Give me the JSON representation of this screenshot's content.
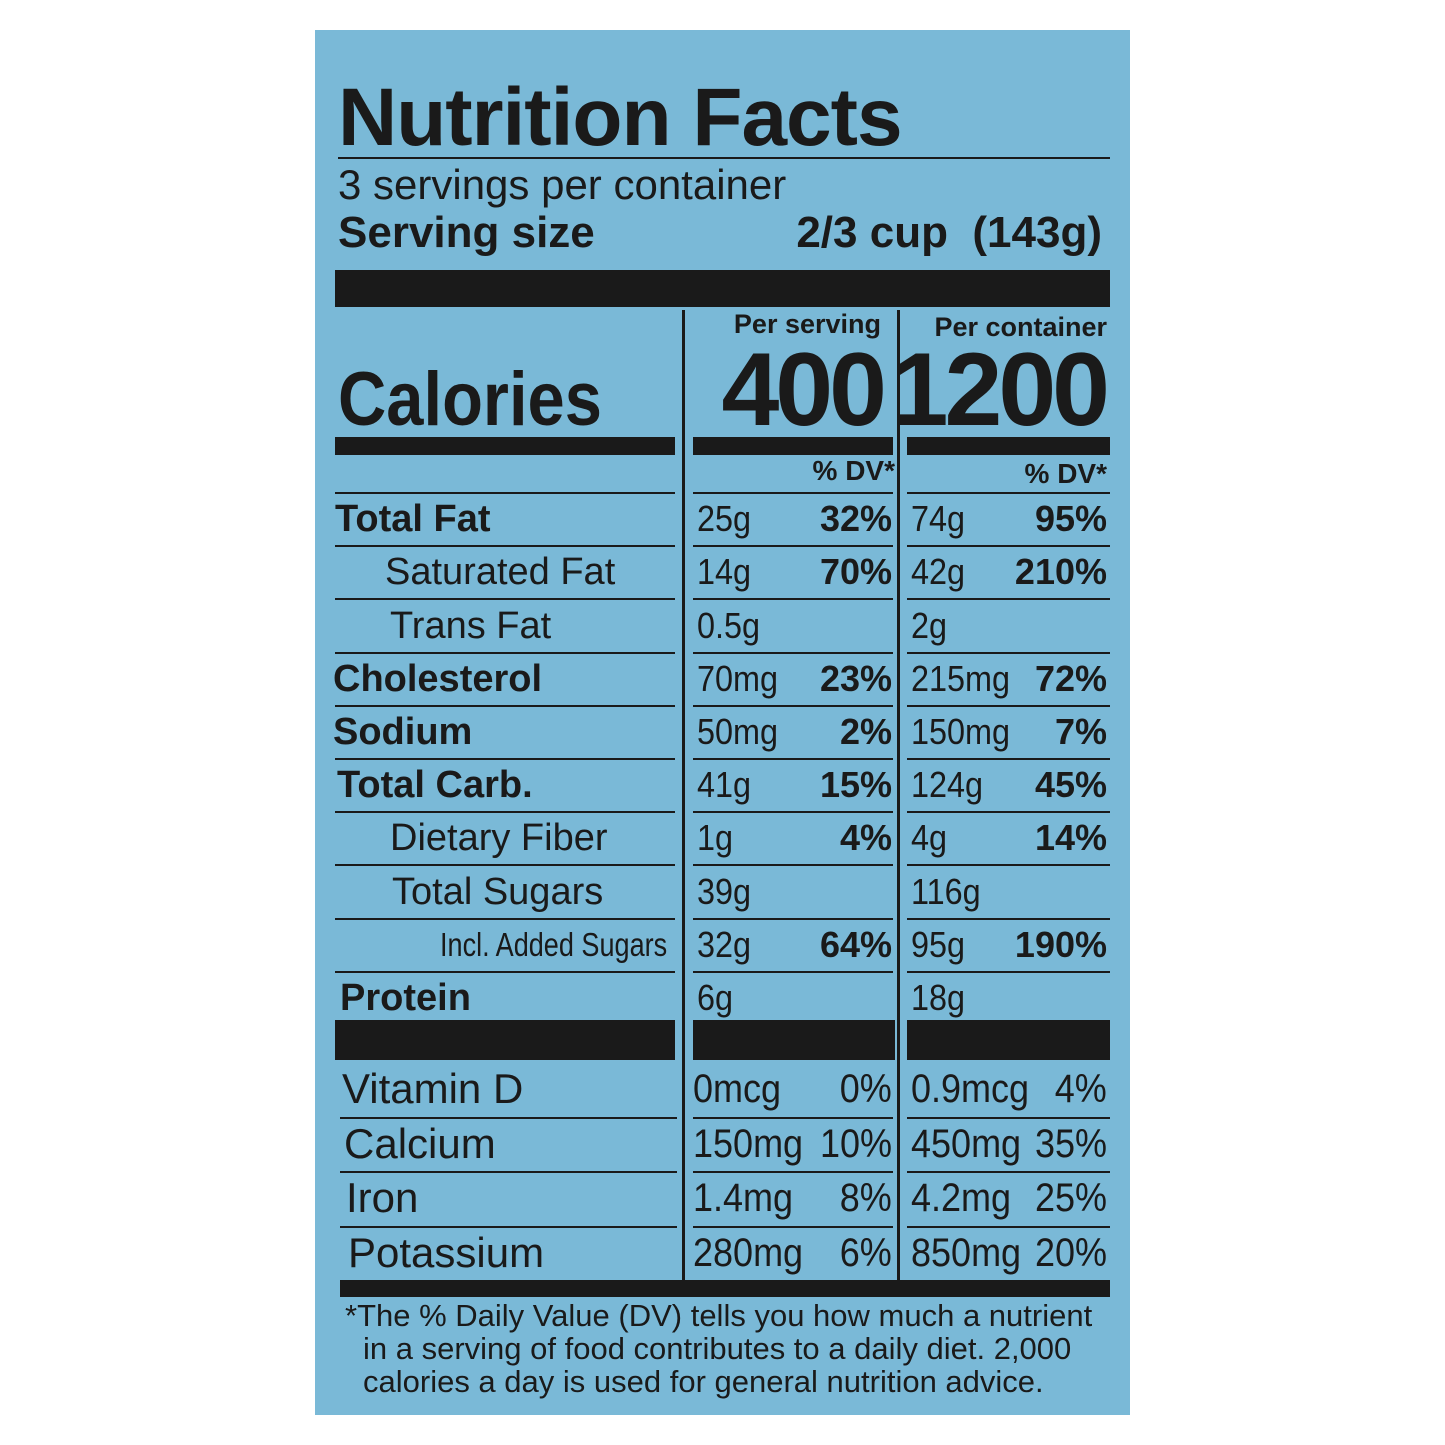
{
  "title": "Nutrition Facts",
  "servings": "3 servings per container",
  "serving_size": {
    "label": "Serving size",
    "value": "2/3 cup  (143g)"
  },
  "columns": [
    "Per serving",
    "Per container"
  ],
  "calories": {
    "label": "Calories",
    "values": [
      "400",
      "1200"
    ]
  },
  "dv_header": "% DV*",
  "rows": [
    {
      "label": "Total Fat",
      "serving": [
        "25g",
        "32%"
      ],
      "container": [
        "74g",
        "95%"
      ]
    },
    {
      "label": "Saturated Fat",
      "serving": [
        "14g",
        "70%"
      ],
      "container": [
        "42g",
        "210%"
      ]
    },
    {
      "label": "Trans Fat",
      "serving": [
        "0.5g"
      ],
      "container": [
        "2g"
      ]
    },
    {
      "label": "Cholesterol",
      "serving": [
        "70mg",
        "23%"
      ],
      "container": [
        "215mg",
        "72%"
      ]
    },
    {
      "label": "Sodium",
      "serving": [
        "50mg",
        "2%"
      ],
      "container": [
        "150mg",
        "7%"
      ]
    },
    {
      "label": "Total Carb.",
      "serving": [
        "41g",
        "15%"
      ],
      "container": [
        "124g",
        "45%"
      ]
    },
    {
      "label": "Dietary Fiber",
      "serving": [
        "1g",
        "4%"
      ],
      "container": [
        "4g",
        "14%"
      ]
    },
    {
      "label": "Total Sugars",
      "serving": [
        "39g"
      ],
      "container": [
        "116g"
      ]
    },
    {
      "label": "Incl. Added Sugars",
      "serving": [
        "32g",
        "64%"
      ],
      "container": [
        "95g",
        "190%"
      ]
    },
    {
      "label": "Protein",
      "serving": [
        "6g"
      ],
      "container": [
        "18g"
      ]
    }
  ],
  "vitamins": [
    {
      "label": "Vitamin D",
      "serving": [
        "0mcg",
        "0%"
      ],
      "container": [
        "0.9mcg",
        "4%"
      ]
    },
    {
      "label": "Calcium",
      "serving": [
        "150mg",
        "10%"
      ],
      "container": [
        "450mg",
        "35%"
      ]
    },
    {
      "label": "Iron",
      "serving": [
        "1.4mg",
        "8%"
      ],
      "container": [
        "4.2mg",
        "25%"
      ]
    },
    {
      "label": "Potassium",
      "serving": [
        "280mg",
        "6%"
      ],
      "container": [
        "850mg",
        "20%"
      ]
    }
  ],
  "footnote": [
    "*The % Daily Value (DV) tells you how much a nutrient",
    "in a serving of food contributes to a daily diet. 2,000",
    "calories a day is used for general nutrition advice."
  ]
}
